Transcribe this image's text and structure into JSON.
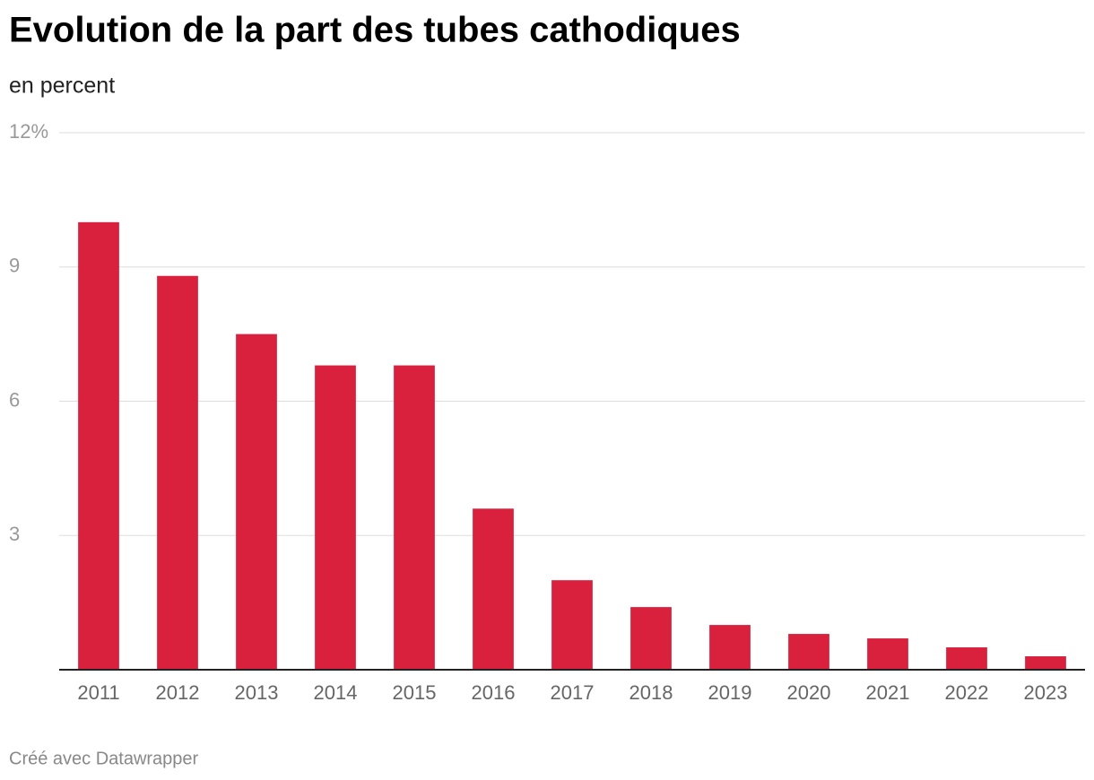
{
  "chart_data": {
    "type": "bar",
    "title": "Evolution de la part des tubes cathodiques",
    "subtitle": "en percent",
    "categories": [
      "2011",
      "2012",
      "2013",
      "2014",
      "2015",
      "2016",
      "2017",
      "2018",
      "2019",
      "2020",
      "2021",
      "2022",
      "2023"
    ],
    "values": [
      10.0,
      8.8,
      7.5,
      6.8,
      6.8,
      3.6,
      2.0,
      1.4,
      1.0,
      0.8,
      0.7,
      0.5,
      0.3
    ],
    "color": "#d9213e",
    "ylim": [
      0,
      12
    ],
    "yticks": [
      3,
      6,
      9,
      {
        "value": 12,
        "label": "12%"
      }
    ],
    "grid": true,
    "footer": "Créé avec Datawrapper"
  }
}
